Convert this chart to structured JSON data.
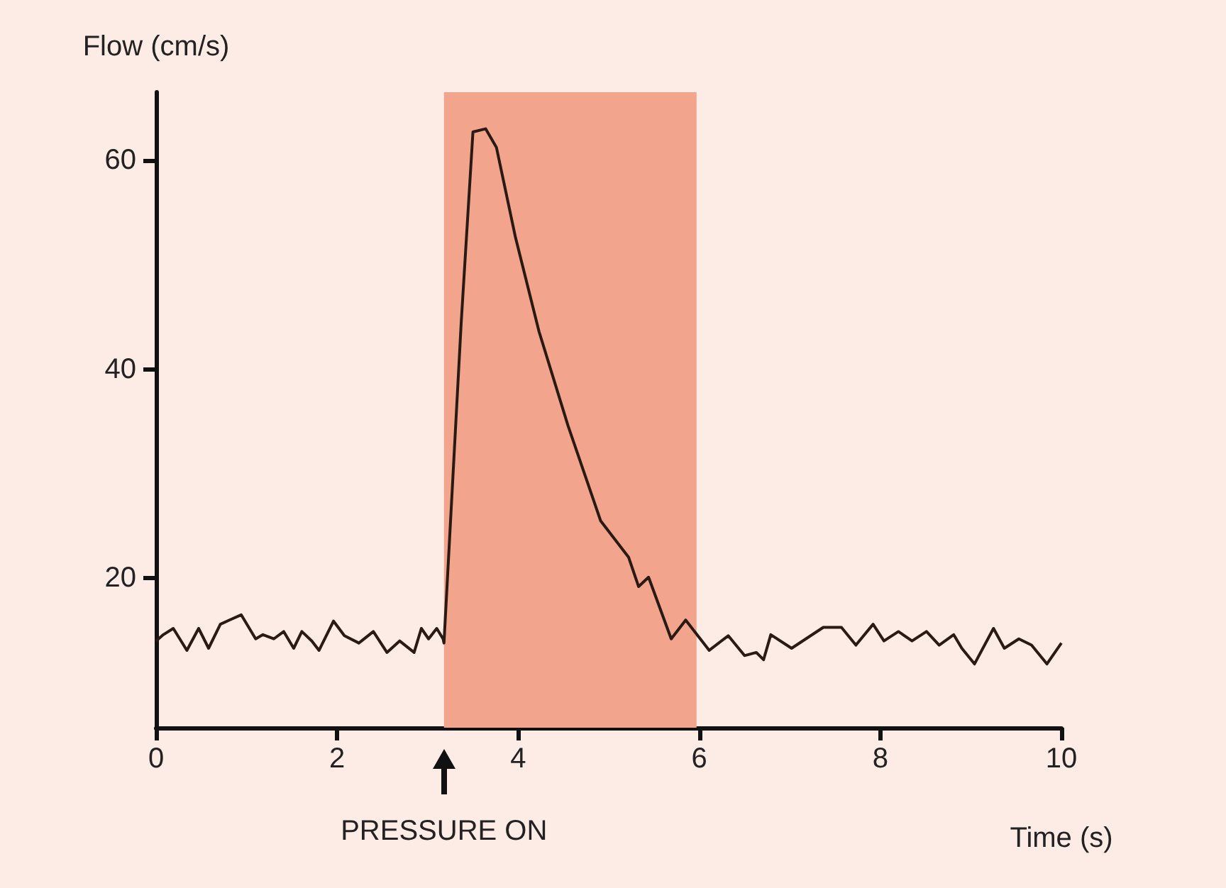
{
  "chart_data": {
    "type": "line",
    "ylabel": "Flow (cm/s)",
    "xlabel": "Time (s)",
    "xlim": [
      0,
      10
    ],
    "xticks": [
      0,
      2,
      4,
      6,
      8,
      10
    ],
    "ylim": [
      5.7,
      66.5
    ],
    "yticks": [
      20,
      40,
      60
    ],
    "marker": "none",
    "line_style": "solid",
    "series": [
      {
        "color": "#2a1a14",
        "x": [
          0,
          0.08,
          0.19,
          0.34,
          0.47,
          0.58,
          0.71,
          0.81,
          0.94,
          1.1,
          1.18,
          1.3,
          1.41,
          1.52,
          1.61,
          1.72,
          1.8,
          1.96,
          2.08,
          2.24,
          2.4,
          2.55,
          2.69,
          2.85,
          2.93,
          3.01,
          3.1,
          3.17,
          3.18,
          3.37,
          3.5,
          3.64,
          3.76,
          3.97,
          4.23,
          4.55,
          4.91,
          5.22,
          5.33,
          5.44,
          5.69,
          5.85,
          6.11,
          6.32,
          6.5,
          6.63,
          6.71,
          6.79,
          7.02,
          7.37,
          7.57,
          7.73,
          7.92,
          8.04,
          8.2,
          8.35,
          8.51,
          8.65,
          8.81,
          8.9,
          9.04,
          9.25,
          9.37,
          9.53,
          9.67,
          9.84,
          10
        ],
        "values": [
          14,
          14.6,
          15.2,
          13.1,
          15.2,
          13.3,
          15.6,
          16,
          16.5,
          14.2,
          14.6,
          14.2,
          14.9,
          13.3,
          14.9,
          14,
          13.1,
          15.9,
          14.5,
          13.8,
          14.9,
          12.9,
          14,
          12.9,
          15.2,
          14.2,
          15.2,
          14.2,
          13.8,
          44.4,
          62.7,
          63,
          61.2,
          52.6,
          43.6,
          34.6,
          25.5,
          22,
          19.2,
          20.1,
          14.2,
          16,
          13.1,
          14.5,
          12.6,
          12.9,
          12.2,
          14.6,
          13.3,
          15.3,
          15.3,
          13.6,
          15.6,
          14,
          14.9,
          14,
          14.9,
          13.6,
          14.6,
          13.3,
          11.8,
          15.2,
          13.3,
          14.2,
          13.6,
          11.8,
          13.8
        ]
      }
    ],
    "bands": [
      {
        "axis": "x",
        "from": 3.18,
        "to": 5.97,
        "color": "#f2a58c"
      }
    ],
    "annotations": [
      "PRESSURE ON"
    ]
  }
}
